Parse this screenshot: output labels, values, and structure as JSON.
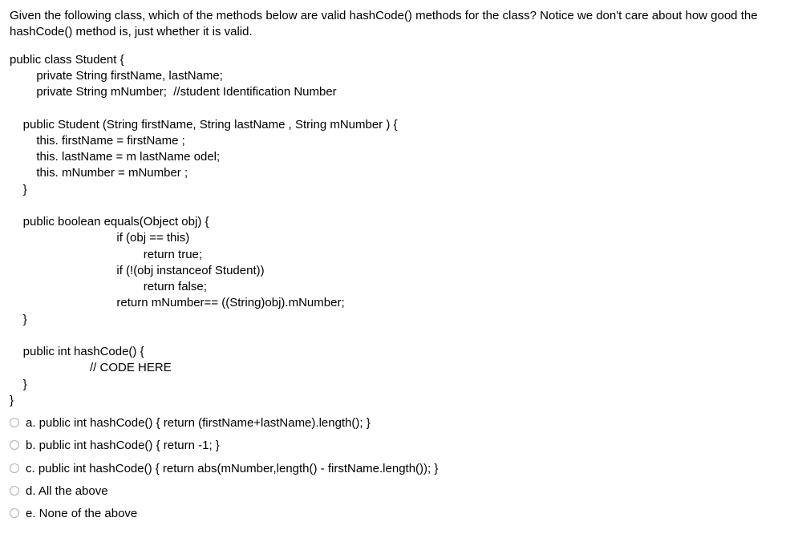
{
  "question": {
    "prompt": "Given the following class, which of the methods below are valid hashCode() methods for the class? Notice we don't care about how good the hashCode() method is, just whether it is valid."
  },
  "code": {
    "line1": "public class Student {",
    "line2": "        private String firstName, lastName;",
    "line3": "        private String mNumber;  //student Identification Number",
    "line4": "",
    "line5": "    public Student (String firstName, String lastName , String mNumber ) {",
    "line6": "        this. firstName = firstName ;",
    "line7": "        this. lastName = m lastName odel;",
    "line8": "        this. mNumber = mNumber ;",
    "line9": "    }",
    "line10": "",
    "line11": "    public boolean equals(Object obj) {",
    "line12": "                                if (obj == this)",
    "line13": "                                        return true;",
    "line14": "                                if (!(obj instanceof Student))",
    "line15": "                                        return false;",
    "line16": "                                return mNumber== ((String)obj).mNumber;",
    "line17": "    }",
    "line18": "",
    "line19": "    public int hashCode() {",
    "line20": "                        // CODE HERE",
    "line21": "    }",
    "line22": "}"
  },
  "options": {
    "a": "a. public int hashCode() { return (firstName+lastName).length(); }",
    "b": "b. public int hashCode() { return -1; }",
    "c": "c. public int hashCode() { return abs(mNumber,length() - firstName.length()); }",
    "d": "d. All the above",
    "e": "e. None of the above"
  }
}
